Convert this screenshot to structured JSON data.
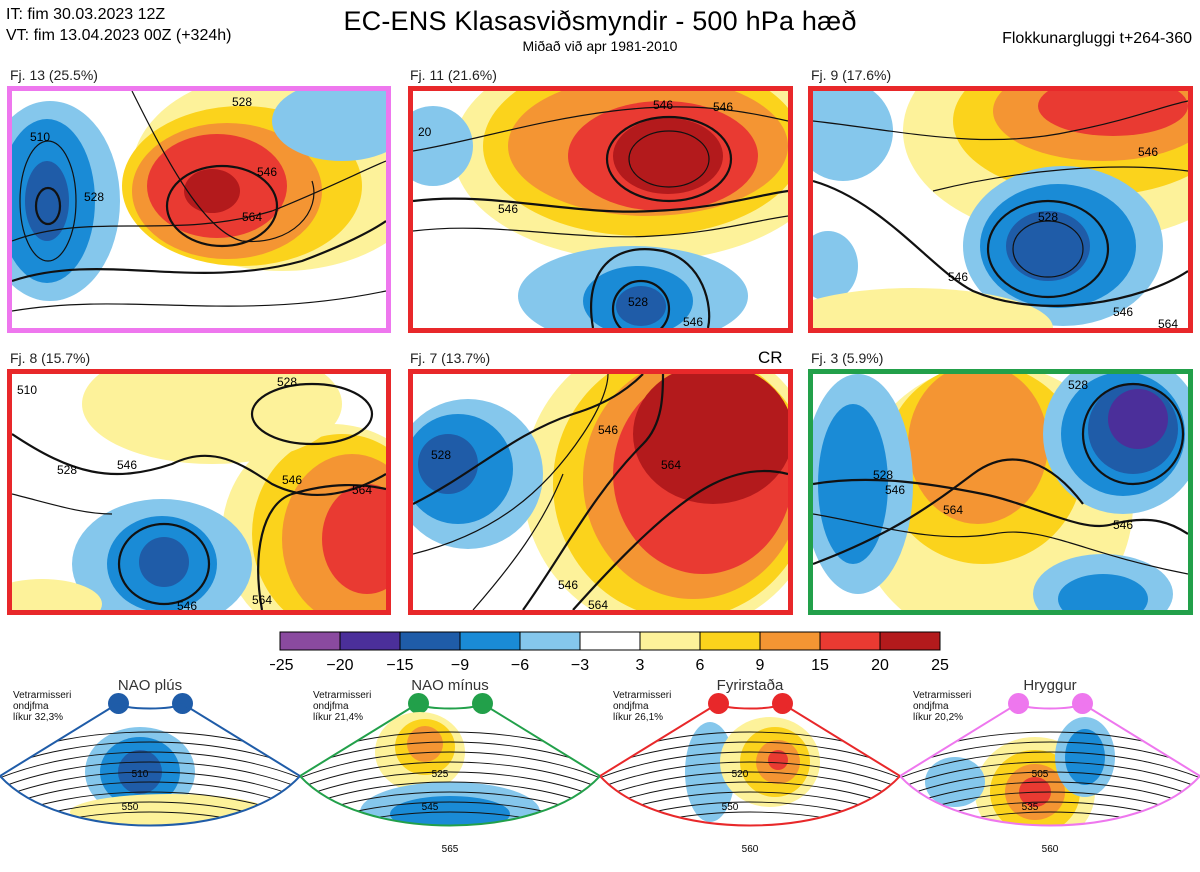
{
  "header": {
    "init_time": "IT: fim 30.03.2023 12Z",
    "valid_time": "VT: fim 13.04.2023 00Z  (+324h)",
    "title": "EC-ENS Klasasviðsmyndir - 500 hPa hæð",
    "subtitle": "Miðað við apr 1981-2010",
    "window": "Flokkunargluggi t+264-360"
  },
  "panels": [
    {
      "label": "Fj. 13 (25.5%)",
      "border": "#ee77ee"
    },
    {
      "label": "Fj. 11 (21.6%)",
      "border": "#e8282a"
    },
    {
      "label": "Fj. 9 (17.6%)",
      "border": "#e8282a"
    },
    {
      "label": "Fj. 8 (15.7%)",
      "border": "#e8282a"
    },
    {
      "label": "Fj. 7 (13.7%)",
      "border": "#e8282a",
      "tag": "CR"
    },
    {
      "label": "Fj. 3 (5.9%)",
      "border": "#22a04a"
    }
  ],
  "chart_data": {
    "type": "heatmap",
    "title": "EC-ENS Klasasviðsmyndir - 500 hPa hæð",
    "colorbar": {
      "ticks": [
        "−25",
        "−20",
        "−15",
        "−9",
        "−6",
        "−3",
        "3",
        "6",
        "9",
        "15",
        "20",
        "25"
      ],
      "colors": [
        "#8a4a9f",
        "#4b2f9a",
        "#1f5ca8",
        "#1a8bd6",
        "#85c7ec",
        "#ffffff",
        "#fdf29a",
        "#fbd31c",
        "#f49533",
        "#e93a32",
        "#b31a1c"
      ]
    },
    "contour_labels": {
      "p0": [
        "510",
        "528",
        "546",
        "564",
        "528"
      ],
      "p1": [
        "546",
        "546",
        "528",
        "546",
        "20",
        "546"
      ],
      "p2": [
        "528",
        "546",
        "546",
        "546",
        "564"
      ],
      "p3": [
        "510",
        "528",
        "546",
        "546",
        "564",
        "546",
        "564",
        "528"
      ],
      "p4": [
        "528",
        "546",
        "564",
        "546",
        "564"
      ],
      "p5": [
        "528",
        "546",
        "564",
        "546",
        "528"
      ]
    }
  },
  "regimes": [
    {
      "title": "NAO plús",
      "note_line1": "Vetrarmisseri",
      "note_line2": "ondjfma",
      "note_line3": "líkur 32,3%",
      "color": "#1f5ca8",
      "contours": [
        "510",
        "550"
      ]
    },
    {
      "title": "NAO mínus",
      "note_line1": "Vetrarmisseri",
      "note_line2": "ondjfma",
      "note_line3": "líkur 21,4%",
      "color": "#22a04a",
      "contours": [
        "525",
        "545",
        "565"
      ]
    },
    {
      "title": "Fyrirstaða",
      "note_line1": "Vetrarmisseri",
      "note_line2": "ondjfma",
      "note_line3": "líkur 26,1%",
      "color": "#e8282a",
      "contours": [
        "520",
        "550",
        "560"
      ]
    },
    {
      "title": "Hryggur",
      "note_line1": "Vetrarmisseri",
      "note_line2": "ondjfma",
      "note_line3": "líkur 20,2%",
      "color": "#ee77ee",
      "contours": [
        "505",
        "535",
        "560"
      ]
    }
  ]
}
